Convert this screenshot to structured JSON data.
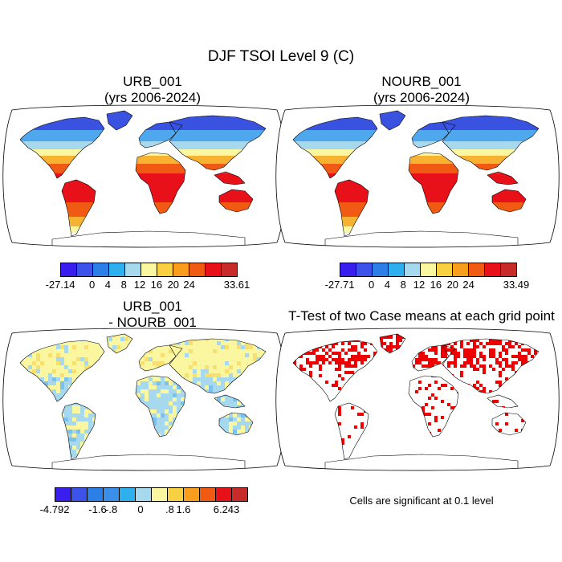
{
  "main_title": "DJF TSOI Level 9 (C)",
  "panels": {
    "urb": {
      "title_line1": "URB_001",
      "title_line2": "(yrs 2006-2024)",
      "colorbar": {
        "colors": [
          "#3a1ef0",
          "#3c52e8",
          "#2b7fe6",
          "#2fb0ee",
          "#a6d8ee",
          "#faf7a0",
          "#f8d042",
          "#f99e1c",
          "#f05a12",
          "#e8111a",
          "#c82a2a"
        ],
        "labels": [
          "-27.14",
          "0",
          "4",
          "8",
          "12",
          "16",
          "20",
          "24",
          "33.61"
        ]
      }
    },
    "nourb": {
      "title_line1": "NOURB_001",
      "title_line2": "(yrs 2006-2024)",
      "colorbar": {
        "colors": [
          "#3a1ef0",
          "#3c52e8",
          "#2b7fe6",
          "#2fb0ee",
          "#a6d8ee",
          "#faf7a0",
          "#f8d042",
          "#f99e1c",
          "#f05a12",
          "#e8111a",
          "#c82a2a"
        ],
        "labels": [
          "-27.71",
          "0",
          "4",
          "8",
          "12",
          "16",
          "20",
          "24",
          "33.49"
        ]
      }
    },
    "diff": {
      "title_line1": "URB_001",
      "title_line2": "- NOURB_001",
      "colorbar": {
        "colors": [
          "#3a1ef0",
          "#3c52e8",
          "#2b7fe6",
          "#3a8fe8",
          "#2fb0ee",
          "#a6d8ee",
          "#faf7a0",
          "#f8d042",
          "#f99e1c",
          "#f05a12",
          "#e8111a",
          "#c82a2a"
        ],
        "labels": [
          "-4.792",
          "-1.6",
          "-.8",
          "0",
          ".8",
          "1.6",
          "6.243"
        ]
      }
    },
    "ttest": {
      "title": "T-Test of two Case means at each grid point",
      "note": "Cells are significant at 0.1 level"
    }
  },
  "colors": {
    "cold": "#3a52e0",
    "cool": "#4fa8ee",
    "mild": "#a6d8ee",
    "pale": "#faf7a0",
    "warm": "#f8b232",
    "hot": "#f05a12",
    "hottest": "#e8111a",
    "sig": "#ee0000"
  }
}
